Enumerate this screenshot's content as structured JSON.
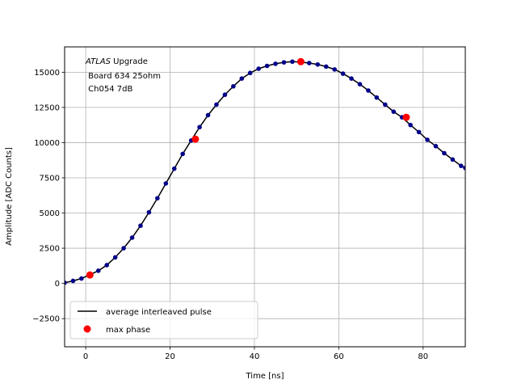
{
  "chart_data": {
    "type": "scatter",
    "title": "",
    "xlabel": "Time [ns]",
    "ylabel": "Amplitude [ADC Counts]",
    "xlim": [
      -5,
      90
    ],
    "ylim": [
      -4500,
      16800
    ],
    "xticks": [
      0,
      20,
      40,
      60,
      80
    ],
    "yticks": [
      -2500,
      0,
      2500,
      5000,
      7500,
      10000,
      12500,
      15000
    ],
    "grid": true,
    "legend_position": "lower-left",
    "annotation": {
      "line1_italic": "ATLAS",
      "line1_rest": " Upgrade",
      "line2": " Board 634 25ohm",
      "line3": " Ch054 7dB"
    },
    "series": [
      {
        "name": "average interleaved pulse",
        "style": "line",
        "color": "#000000",
        "x": [
          -5,
          -3,
          -1,
          1,
          3,
          5,
          7,
          9,
          11,
          13,
          15,
          17,
          19,
          21,
          23,
          25,
          27,
          29,
          31,
          33,
          35,
          37,
          39,
          41,
          43,
          45,
          47,
          49,
          51,
          53,
          55,
          57,
          59,
          61,
          63,
          65,
          67,
          69,
          71,
          73,
          75,
          77,
          79,
          81,
          83,
          85,
          87,
          89,
          90
        ],
        "y": [
          50,
          180,
          350,
          620,
          900,
          1300,
          1850,
          2500,
          3250,
          4100,
          5050,
          6050,
          7100,
          8150,
          9200,
          10150,
          11100,
          11950,
          12700,
          13400,
          14000,
          14550,
          14950,
          15250,
          15450,
          15600,
          15700,
          15750,
          15720,
          15650,
          15550,
          15400,
          15200,
          14900,
          14550,
          14150,
          13700,
          13200,
          12700,
          12200,
          11800,
          11250,
          10750,
          10200,
          9750,
          9250,
          8800,
          8350,
          8200
        ]
      },
      {
        "name": "",
        "style": "markers",
        "color": "#00008b",
        "x": [
          -5,
          -3,
          -1,
          1,
          3,
          5,
          7,
          9,
          11,
          13,
          15,
          17,
          19,
          21,
          23,
          25,
          27,
          29,
          31,
          33,
          35,
          37,
          39,
          41,
          43,
          45,
          47,
          49,
          51,
          53,
          55,
          57,
          59,
          61,
          63,
          65,
          67,
          69,
          71,
          73,
          75,
          77,
          79,
          81,
          83,
          85,
          87,
          89,
          90
        ],
        "y": [
          50,
          180,
          350,
          620,
          900,
          1300,
          1850,
          2500,
          3250,
          4100,
          5050,
          6050,
          7100,
          8150,
          9200,
          10150,
          11100,
          11950,
          12700,
          13400,
          14000,
          14550,
          14950,
          15250,
          15450,
          15600,
          15700,
          15750,
          15720,
          15650,
          15550,
          15400,
          15200,
          14900,
          14550,
          14150,
          13700,
          13200,
          12700,
          12200,
          11800,
          11250,
          10750,
          10200,
          9750,
          9250,
          8800,
          8350,
          8200
        ]
      },
      {
        "name": "max phase",
        "style": "markers",
        "color": "#ff0000",
        "x": [
          1,
          26,
          51,
          76
        ],
        "y": [
          600,
          10250,
          15750,
          11800
        ]
      }
    ]
  }
}
